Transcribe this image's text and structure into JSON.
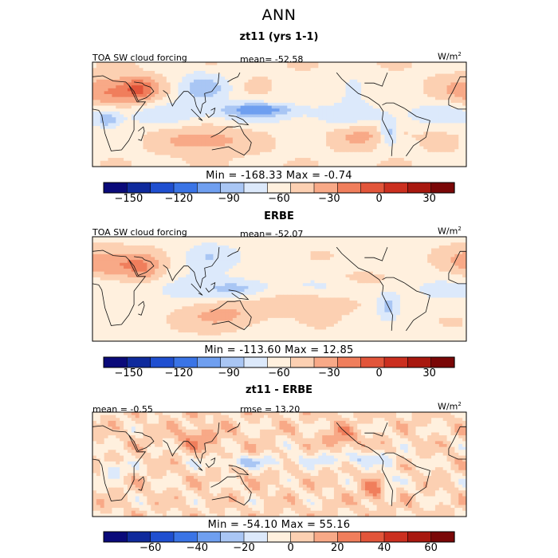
{
  "figure": {
    "title": "ANN",
    "panel1": {
      "title": "zt11 (yrs 1-1)",
      "left_label": "TOA SW cloud forcing",
      "center_label": "mean= -52.58",
      "unit_base": "W/m",
      "unit_exp": "2",
      "minmax": "Min = -168.33 Max =  -0.74"
    },
    "panel2": {
      "title": "ERBE",
      "left_label": "TOA SW cloud forcing",
      "center_label": "mean= -52.07",
      "unit_base": "W/m",
      "unit_exp": "2",
      "minmax": "Min = -113.60 Max =  12.85"
    },
    "panel3": {
      "title": "zt11 - ERBE",
      "left_label": "mean =  -0.55",
      "center_label": "rmse =  13.20",
      "unit_base": "W/m",
      "unit_exp": "2",
      "minmax": "Min = -54.10 Max =  55.16"
    }
  },
  "chart_data": [
    {
      "type": "heatmap",
      "title": "zt11 (yrs 1-1)",
      "variable": "TOA SW cloud forcing",
      "units": "W/m2",
      "mean": -52.58,
      "min": -168.33,
      "max": -0.74,
      "colorbar_boundaries": [
        -165,
        -150,
        -135,
        -120,
        -105,
        -90,
        -75,
        -60,
        -45,
        -30,
        -15,
        0,
        15,
        30,
        45
      ],
      "colorbar_tick_values": [
        -150,
        -120,
        -90,
        -60,
        -30,
        0,
        30
      ],
      "colorbar_tick_labels": [
        "-150",
        "-120",
        "-90",
        "-60",
        "-30",
        "0",
        "30"
      ],
      "colors": [
        "#0a0a7a",
        "#0f2a9c",
        "#1f4fd0",
        "#3a74e6",
        "#6f9ff0",
        "#a9c6f4",
        "#dce9fb",
        "#fff0de",
        "#fcd0b2",
        "#f8a987",
        "#f07e5c",
        "#e2553a",
        "#cb2f1f",
        "#a8180f",
        "#7a0707"
      ]
    },
    {
      "type": "heatmap",
      "title": "ERBE",
      "variable": "TOA SW cloud forcing",
      "units": "W/m2",
      "mean": -52.07,
      "min": -113.6,
      "max": 12.85,
      "colorbar_boundaries": [
        -165,
        -150,
        -135,
        -120,
        -105,
        -90,
        -75,
        -60,
        -45,
        -30,
        -15,
        0,
        15,
        30,
        45
      ],
      "colorbar_tick_values": [
        -150,
        -120,
        -90,
        -60,
        -30,
        0,
        30
      ],
      "colorbar_tick_labels": [
        "-150",
        "-120",
        "-90",
        "-60",
        "-30",
        "0",
        "30"
      ],
      "colors": [
        "#0a0a7a",
        "#0f2a9c",
        "#1f4fd0",
        "#3a74e6",
        "#6f9ff0",
        "#a9c6f4",
        "#dce9fb",
        "#fff0de",
        "#fcd0b2",
        "#f8a987",
        "#f07e5c",
        "#e2553a",
        "#cb2f1f",
        "#a8180f",
        "#7a0707"
      ]
    },
    {
      "type": "heatmap",
      "title": "zt11 - ERBE",
      "units": "W/m2",
      "mean": -0.55,
      "rmse": 13.2,
      "min": -54.1,
      "max": 55.16,
      "colorbar_boundaries": [
        -80,
        -70,
        -60,
        -50,
        -40,
        -30,
        -20,
        -10,
        0,
        10,
        20,
        30,
        40,
        50,
        60,
        70
      ],
      "colorbar_tick_values": [
        -60,
        -40,
        -20,
        0,
        20,
        40,
        60
      ],
      "colorbar_tick_labels": [
        "-60",
        "-40",
        "-20",
        "0",
        "20",
        "40",
        "60"
      ],
      "colors": [
        "#0a0a7a",
        "#0f2a9c",
        "#1f4fd0",
        "#3a74e6",
        "#6f9ff0",
        "#a9c6f4",
        "#dce9fb",
        "#fff0de",
        "#fcd0b2",
        "#f8a987",
        "#f07e5c",
        "#e2553a",
        "#cb2f1f",
        "#a8180f",
        "#7a0707"
      ]
    }
  ]
}
